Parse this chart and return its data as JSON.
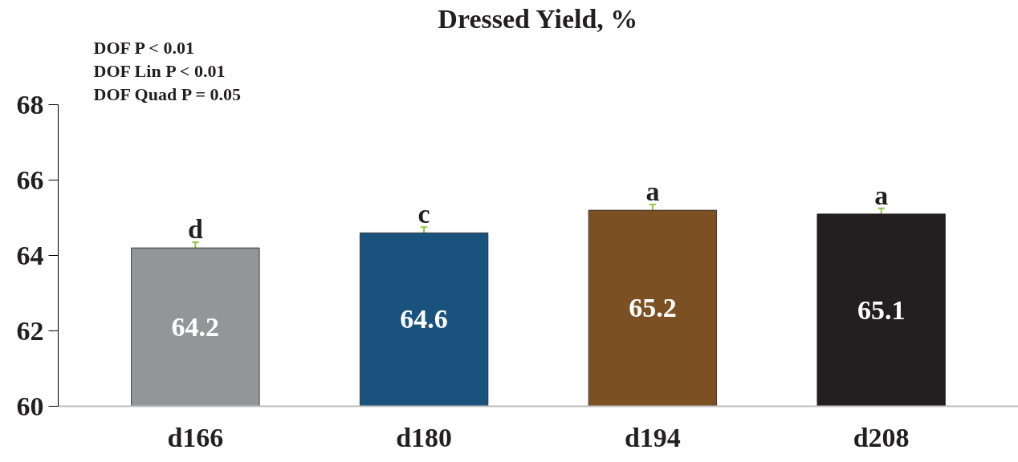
{
  "chart_data": {
    "type": "bar",
    "title": "Dressed Yield, %",
    "categories": [
      "d166",
      "d180",
      "d194",
      "d208"
    ],
    "values": [
      64.2,
      64.6,
      65.2,
      65.1
    ],
    "colors": [
      "#939598",
      "#1a527e",
      "#7b5124",
      "#231f20"
    ],
    "errors": [
      0.15,
      0.15,
      0.15,
      0.15
    ],
    "ylim": [
      60,
      68
    ],
    "yticks": [
      60,
      62,
      64,
      66,
      68
    ],
    "grid": false,
    "data_labels": true,
    "annotations": [
      "DOF P < 0.01",
      "DOF Lin  P < 0.01",
      "DOF Quad P = 0.05",
      {
        "text": "d",
        "x": "d166",
        "y": 64.35
      },
      {
        "text": "c",
        "x": "d180",
        "y": 64.75
      },
      {
        "text": "a",
        "x": "d194",
        "y": 65.35
      },
      {
        "text": "a",
        "x": "d208",
        "y": 65.25
      }
    ]
  }
}
